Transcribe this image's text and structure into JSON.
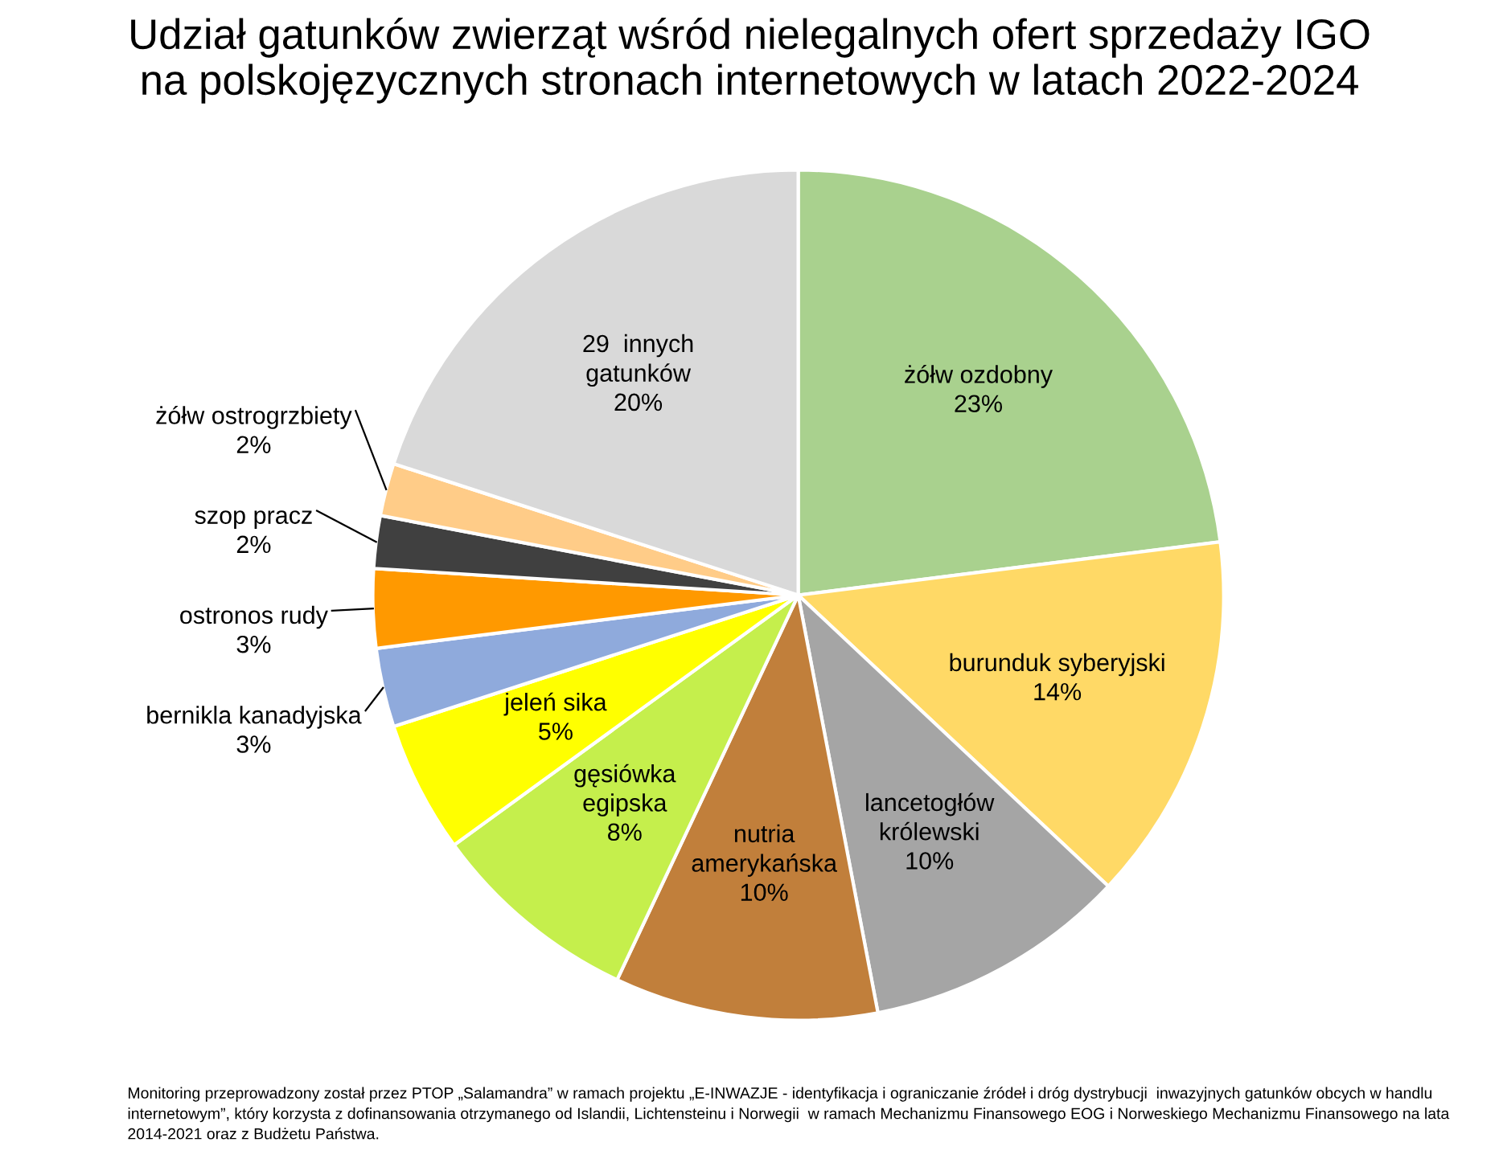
{
  "chart_data": {
    "type": "pie",
    "title": "Udział gatunków zwierząt wśród nielegalnych ofert sprzedaży IGO\nna polskojęzycznych stronach internetowych w latach 2022-2024",
    "categories": [
      "żółw ozdobny",
      "burunduk syberyjski",
      "lancetogłów\nkrólewski",
      "nutria\namerykańska",
      "gęsiówka\negipska",
      "jeleń sika",
      "bernikla kanadyjska",
      "ostronos rudy",
      "szop pracz",
      "żółw ostrogrzbiety",
      "29  innych\ngatunków"
    ],
    "values": [
      23,
      14,
      10,
      10,
      8,
      5,
      3,
      3,
      2,
      2,
      20
    ],
    "colors": [
      "#a9d18e",
      "#ffd966",
      "#a5a5a5",
      "#c17f3b",
      "#c5ef4c",
      "#ffff00",
      "#8faadc",
      "#ff9900",
      "#404040",
      "#ffcc88",
      "#d9d9d9"
    ],
    "value_labels": [
      "23%",
      "14%",
      "10%",
      "10%",
      "8%",
      "5%",
      "3%",
      "3%",
      "2%",
      "2%",
      "20%"
    ],
    "legend": false,
    "annotations": [
      "Monitoring przeprowadzony został przez PTOP „Salamandra” w ramach projektu „E-INWAZJE - identyfikacja i ograniczanie źródeł i dróg dystrybucji  inwazyjnych gatunków obcych w handlu internetowym”, który korzysta z dofinansowania otrzymanego od Islandii, Lichtensteinu i Norwegii  w ramach Mechanizmu Finansowego EOG i Norweskiego Mechanizmu Finansowego na lata 2014-2021 oraz z Budżetu Państwa."
    ]
  }
}
